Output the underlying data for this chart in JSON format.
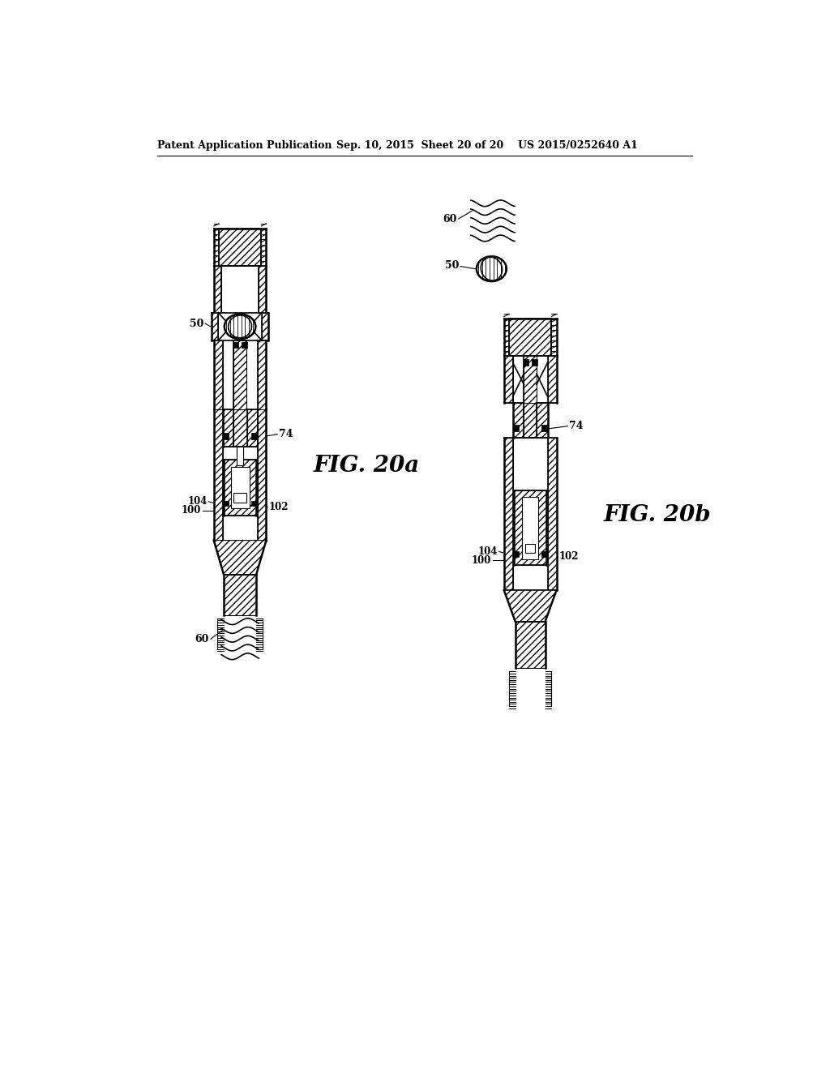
{
  "bg_color": "#ffffff",
  "line_color": "#000000",
  "header_text": "Patent Application Publication",
  "header_date": "Sep. 10, 2015  Sheet 20 of 20",
  "header_patent": "US 2015/0252640 A1",
  "fig_label_a": "FIG. 20a",
  "fig_label_b": "FIG. 20b",
  "label_50_a": "50",
  "label_60_a": "60",
  "label_74_a": "74",
  "label_100_a": "100",
  "label_102_a": "102",
  "label_104_a": "104",
  "label_50_b": "50",
  "label_60_b": "60",
  "label_74_b": "74",
  "label_100_b": "100",
  "label_102_b": "102",
  "label_104_b": "104"
}
